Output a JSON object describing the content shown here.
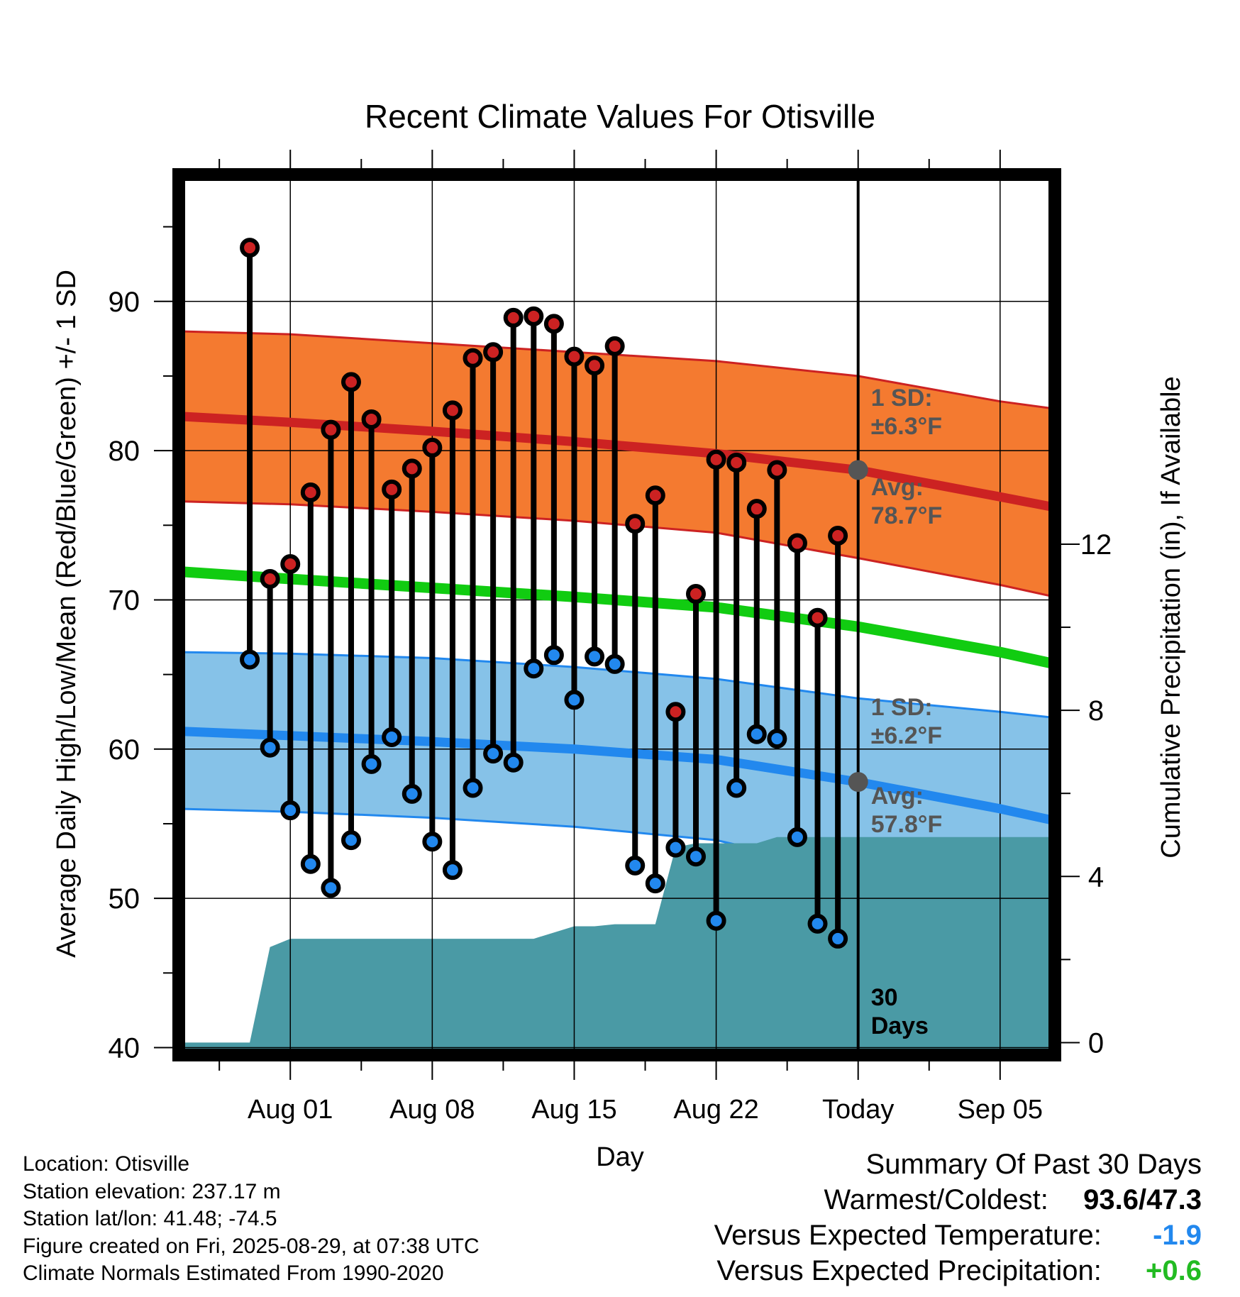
{
  "chart_data": {
    "type": "line",
    "title": "Recent Climate Values For Otisville",
    "xlabel": "Day",
    "ylabel": "Average Daily High/Low/Mean (Red/Blue/Green) +/- 1 SD",
    "y2label": "Cumulative Precipitation (in), If Available",
    "ylim": [
      39.5,
      98.5
    ],
    "y2lim": [
      -0.3,
      20.9
    ],
    "x_range_days": [
      -33.5,
      9.7
    ],
    "x_ticks": [
      {
        "day": -28,
        "label": "Aug 01"
      },
      {
        "day": -21,
        "label": "Aug 08"
      },
      {
        "day": -14,
        "label": "Aug 15"
      },
      {
        "day": -7,
        "label": "Aug 22"
      },
      {
        "day": 0,
        "label": "Today"
      },
      {
        "day": 7,
        "label": "Sep 05"
      }
    ],
    "y_ticks": [
      40,
      50,
      60,
      70,
      80,
      90
    ],
    "y2_ticks": [
      0,
      4,
      8,
      12
    ],
    "grid": true,
    "colors": {
      "high": "#cc2222",
      "low": "#2288ee",
      "mean": "#11cc11",
      "high_band": "#f47a30",
      "low_band": "#86c2e8",
      "precip": "#4a9aa5",
      "avg_marker": "#555555"
    },
    "daily": {
      "days": [
        -30,
        -29,
        -28,
        -27,
        -26,
        -25,
        -24,
        -23,
        -22,
        -21,
        -20,
        -19,
        -18,
        -17,
        -16,
        -15,
        -14,
        -13,
        -12,
        -11,
        -10,
        -9,
        -8,
        -7,
        -6,
        -5,
        -4,
        -3,
        -2,
        -1
      ],
      "high": [
        93.6,
        71.4,
        72.4,
        77.2,
        81.4,
        84.6,
        82.1,
        77.4,
        78.8,
        80.2,
        82.7,
        86.2,
        86.6,
        88.9,
        89.0,
        88.5,
        86.3,
        85.7,
        87.0,
        75.1,
        77.0,
        62.5,
        70.4,
        79.4,
        79.2,
        76.1,
        78.7,
        73.8,
        68.8,
        74.3
      ],
      "low": [
        66.0,
        60.1,
        55.9,
        52.3,
        50.7,
        53.9,
        59.0,
        60.8,
        57.0,
        53.8,
        51.9,
        57.4,
        59.7,
        59.1,
        65.4,
        66.3,
        63.3,
        66.2,
        65.7,
        52.2,
        51.0,
        53.4,
        52.8,
        48.5,
        57.4,
        61.0,
        60.7,
        54.1,
        48.3,
        47.3
      ]
    },
    "normals": {
      "days": [
        -33.5,
        -28,
        -21,
        -14,
        -7,
        0,
        7,
        9.7
      ],
      "high_mean": [
        82.3,
        81.9,
        81.3,
        80.6,
        79.8,
        78.7,
        76.9,
        76.2
      ],
      "high_upper": [
        88.0,
        87.8,
        87.2,
        86.6,
        86.0,
        85.0,
        83.3,
        82.8
      ],
      "high_lower": [
        76.6,
        76.4,
        75.9,
        75.3,
        74.5,
        72.8,
        71.0,
        70.2
      ],
      "low_mean": [
        61.2,
        60.9,
        60.5,
        60.0,
        59.3,
        57.8,
        56.0,
        55.2
      ],
      "low_upper": [
        66.5,
        66.4,
        66.1,
        65.5,
        64.7,
        63.4,
        62.5,
        62.1
      ],
      "low_lower": [
        56.0,
        55.8,
        55.4,
        54.8,
        53.9,
        51.7,
        51.0,
        51.0
      ],
      "mean": [
        71.9,
        71.4,
        70.8,
        70.2,
        69.5,
        68.2,
        66.5,
        65.7
      ]
    },
    "precip": {
      "days": [
        -33.5,
        -31.5,
        -30.5,
        -30,
        -29,
        -28,
        -21,
        -16,
        -14,
        -13,
        -12,
        -11,
        -10.5,
        -10,
        -9,
        -8,
        -7,
        -6,
        -5,
        -4,
        -3,
        -2,
        -1,
        0,
        9.7
      ],
      "values": [
        0,
        0,
        0,
        0,
        2.3,
        2.5,
        2.5,
        2.5,
        2.8,
        2.8,
        2.85,
        2.85,
        2.85,
        2.85,
        4.7,
        4.8,
        4.8,
        4.8,
        4.8,
        4.95,
        4.95,
        4.95,
        4.95,
        4.95,
        4.95
      ]
    },
    "annotations": {
      "high_sd": [
        "1 SD:",
        "±6.3°F"
      ],
      "high_avg": [
        "Avg:",
        "78.7°F"
      ],
      "low_sd": [
        "1 SD:",
        "±6.2°F"
      ],
      "low_avg": [
        "Avg:",
        "57.8°F"
      ],
      "days_label": [
        "30",
        "Days"
      ],
      "high_avg_value": 78.7,
      "low_avg_value": 57.8
    }
  },
  "footer": {
    "location": "Location: Otisville",
    "elevation": "Station elevation: 237.17 m",
    "latlon": "Station lat/lon: 41.48; -74.5",
    "created": "Figure created on Fri, 2025-08-29, at 07:38 UTC",
    "normals": "Climate Normals Estimated From 1990-2020"
  },
  "summary": {
    "title": "Summary Of Past 30 Days",
    "warm_cold_label": "Warmest/Coldest:",
    "warm_cold_value": "93.6/47.3",
    "temp_label": "Versus Expected Temperature:",
    "temp_value": "-1.9",
    "temp_color": "#2288ee",
    "precip_label": "Versus Expected Precipitation:",
    "precip_value": "+0.6",
    "precip_color": "#22bb22"
  }
}
